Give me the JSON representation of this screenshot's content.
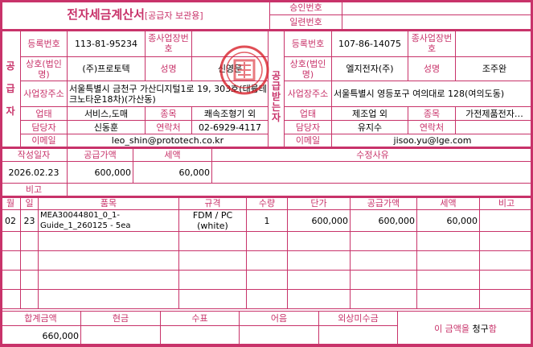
{
  "title": {
    "main": "전자세금계산서",
    "sub": "[공급자 보관용]"
  },
  "approval": {
    "approval_no_label": "승인번호",
    "approval_no": "",
    "serial_no_label": "일련번호",
    "serial_no": ""
  },
  "supplier": {
    "side_label": "공급자",
    "reg_no_label": "등록번호",
    "reg_no": "113-81-95234",
    "sub_biz_label": "종사업장번호",
    "sub_biz": "",
    "name_label": "상호(법인명)",
    "name": "(주)프로토텍",
    "rep_label": "성명",
    "rep": "신영문",
    "addr_label": "사업장주소",
    "addr": "서울특별시 금천구 가산디지털1로 19, 303호(대륭테크노타운18차)(가산동)",
    "type_label": "업태",
    "type": "서비스,도매",
    "item_label": "종목",
    "item": "쾌속조형기 외",
    "contact_label": "담당자",
    "contact": "신동훈",
    "phone_label": "연락처",
    "phone": "02-6929-4117",
    "email_label": "이메일",
    "email": "leo_shin@prototech.co.kr"
  },
  "buyer": {
    "side_label": "공급받는자",
    "reg_no_label": "등록번호",
    "reg_no": "107-86-14075",
    "sub_biz_label": "종사업장번호",
    "sub_biz": "",
    "name_label": "상호(법인명)",
    "name": "엘지전자(주)",
    "rep_label": "성명",
    "rep": "조주완",
    "addr_label": "사업장주소",
    "addr": "서울특별시 영등포구 여의대로 128(여의도동)",
    "type_label": "업태",
    "type": "제조업 외",
    "item_label": "종목",
    "item": "가전제품전자…",
    "contact_label": "담당자",
    "contact": "유지수",
    "phone_label": "연락처",
    "phone": "",
    "email_label": "이메일",
    "email": "jisoo.yu@lge.com"
  },
  "summary": {
    "date_label": "작성일자",
    "date": "2026.02.23",
    "supply_label": "공급가액",
    "supply": "600,000",
    "tax_label": "세액",
    "tax": "60,000",
    "reason_label": "수정사유",
    "reason": "",
    "note_label": "비고",
    "note": ""
  },
  "items": {
    "headers": [
      "월",
      "일",
      "품목",
      "규격",
      "수량",
      "단가",
      "공급가액",
      "세액",
      "비고"
    ],
    "rows": [
      [
        "02",
        "23",
        "MEA30044801_0_1-Guide_1_260125 - 5ea",
        "FDM / PC (white)",
        "1",
        "600,000",
        "600,000",
        "60,000",
        ""
      ]
    ]
  },
  "footer": {
    "total_label": "합계금액",
    "total": "660,000",
    "cash_label": "현금",
    "cash": "",
    "check_label": "수표",
    "check": "",
    "note_label": "어음",
    "note": "",
    "credit_label": "외상미수금",
    "credit": "",
    "claim_text_pre": "이 금액을 ",
    "claim_text_word": "청구",
    "claim_text_post": "함"
  },
  "colors": {
    "border": "#c8336a",
    "stamp": "#d8202a"
  }
}
